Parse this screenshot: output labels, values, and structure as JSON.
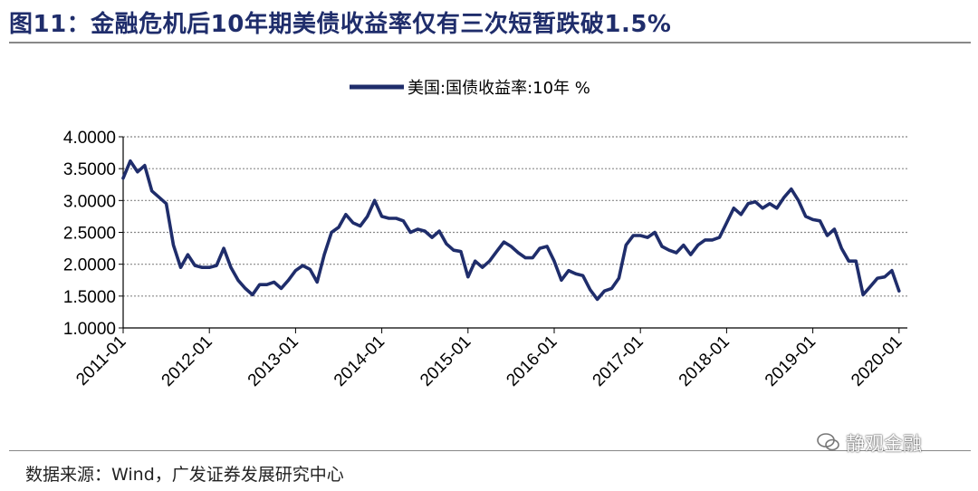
{
  "header": {
    "title": "图11：金融危机后10年期美债收益率仅有三次短暂跌破1.5%"
  },
  "footer": {
    "source": "数据来源：Wind，广发证券发展研究中心",
    "watermark": "静观金融"
  },
  "colors": {
    "series": "#1f2d6b",
    "grid": "#888888",
    "title": "#1f2d6b"
  },
  "chart_data": {
    "type": "line",
    "title": "",
    "xlabel": "",
    "ylabel": "",
    "legend": {
      "position": "top-center",
      "entries": [
        "美国:国债收益率:10年 %"
      ]
    },
    "grid": {
      "horizontal": true,
      "style": "dotted"
    },
    "ylim": [
      1.0,
      4.0
    ],
    "yticks": [
      "1.0000",
      "1.5000",
      "2.0000",
      "2.5000",
      "3.0000",
      "3.5000",
      "4.0000"
    ],
    "xticks": [
      "2011-01",
      "2012-01",
      "2013-01",
      "2014-01",
      "2015-01",
      "2016-01",
      "2017-01",
      "2018-01",
      "2019-01",
      "2020-01"
    ],
    "series": [
      {
        "name": "美国:国债收益率:10年 %",
        "x": [
          "2011-01",
          "2011-02",
          "2011-03",
          "2011-04",
          "2011-05",
          "2011-06",
          "2011-07",
          "2011-08",
          "2011-09",
          "2011-10",
          "2011-11",
          "2011-12",
          "2012-01",
          "2012-02",
          "2012-03",
          "2012-04",
          "2012-05",
          "2012-06",
          "2012-07",
          "2012-08",
          "2012-09",
          "2012-10",
          "2012-11",
          "2012-12",
          "2013-01",
          "2013-02",
          "2013-03",
          "2013-04",
          "2013-05",
          "2013-06",
          "2013-07",
          "2013-08",
          "2013-09",
          "2013-10",
          "2013-11",
          "2013-12",
          "2014-01",
          "2014-02",
          "2014-03",
          "2014-04",
          "2014-05",
          "2014-06",
          "2014-07",
          "2014-08",
          "2014-09",
          "2014-10",
          "2014-11",
          "2014-12",
          "2015-01",
          "2015-02",
          "2015-03",
          "2015-04",
          "2015-05",
          "2015-06",
          "2015-07",
          "2015-08",
          "2015-09",
          "2015-10",
          "2015-11",
          "2015-12",
          "2016-01",
          "2016-02",
          "2016-03",
          "2016-04",
          "2016-05",
          "2016-06",
          "2016-07",
          "2016-08",
          "2016-09",
          "2016-10",
          "2016-11",
          "2016-12",
          "2017-01",
          "2017-02",
          "2017-03",
          "2017-04",
          "2017-05",
          "2017-06",
          "2017-07",
          "2017-08",
          "2017-09",
          "2017-10",
          "2017-11",
          "2017-12",
          "2018-01",
          "2018-02",
          "2018-03",
          "2018-04",
          "2018-05",
          "2018-06",
          "2018-07",
          "2018-08",
          "2018-09",
          "2018-10",
          "2018-11",
          "2018-12",
          "2019-01",
          "2019-02",
          "2019-03",
          "2019-04",
          "2019-05",
          "2019-06",
          "2019-07",
          "2019-08",
          "2019-09",
          "2019-10",
          "2019-11",
          "2019-12",
          "2020-01"
        ],
        "values": [
          3.35,
          3.62,
          3.45,
          3.55,
          3.15,
          3.05,
          2.95,
          2.3,
          1.95,
          2.15,
          1.98,
          1.95,
          1.95,
          1.98,
          2.25,
          1.95,
          1.75,
          1.62,
          1.52,
          1.68,
          1.68,
          1.72,
          1.62,
          1.75,
          1.9,
          1.98,
          1.92,
          1.72,
          2.15,
          2.5,
          2.58,
          2.78,
          2.65,
          2.6,
          2.75,
          3.0,
          2.75,
          2.72,
          2.72,
          2.68,
          2.5,
          2.55,
          2.52,
          2.42,
          2.52,
          2.32,
          2.22,
          2.2,
          1.8,
          2.05,
          1.95,
          2.05,
          2.2,
          2.35,
          2.28,
          2.18,
          2.1,
          2.1,
          2.25,
          2.28,
          2.05,
          1.75,
          1.9,
          1.85,
          1.82,
          1.6,
          1.45,
          1.58,
          1.62,
          1.78,
          2.3,
          2.45,
          2.45,
          2.42,
          2.5,
          2.28,
          2.22,
          2.18,
          2.3,
          2.15,
          2.3,
          2.38,
          2.38,
          2.42,
          2.65,
          2.88,
          2.78,
          2.95,
          2.98,
          2.88,
          2.95,
          2.88,
          3.05,
          3.18,
          3.0,
          2.75,
          2.7,
          2.68,
          2.45,
          2.55,
          2.25,
          2.05,
          2.05,
          1.52,
          1.65,
          1.78,
          1.8,
          1.9,
          1.58
        ]
      }
    ]
  }
}
